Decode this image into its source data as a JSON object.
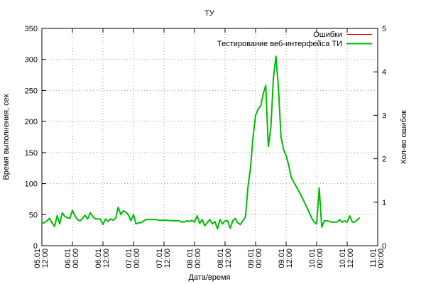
{
  "chart_data": {
    "type": "line",
    "title": "ТУ",
    "xlabel": "Дата/время",
    "ylabel": "Время выполнения, сек",
    "y2label": "Кол-во ошибок",
    "ylim": [
      0,
      350
    ],
    "y2lim": [
      0,
      5
    ],
    "yticks": [
      "0",
      "50",
      "100",
      "150",
      "200",
      "250",
      "300",
      "350"
    ],
    "y2ticks": [
      "0",
      "1",
      "2",
      "3",
      "4",
      "5"
    ],
    "xticks": [
      {
        "date": "05.01",
        "time": "12:00"
      },
      {
        "date": "06.01",
        "time": "00:00"
      },
      {
        "date": "06.01",
        "time": "12:00"
      },
      {
        "date": "07.01",
        "time": "00:00"
      },
      {
        "date": "07.01",
        "time": "12:00"
      },
      {
        "date": "08.01",
        "time": "00:00"
      },
      {
        "date": "08.01",
        "time": "12:00"
      },
      {
        "date": "09.01",
        "time": "00:00"
      },
      {
        "date": "09.01",
        "time": "12:00"
      },
      {
        "date": "10.01",
        "time": "00:00"
      },
      {
        "date": "10.01",
        "time": "12:00"
      },
      {
        "date": "11.01",
        "time": "00:00"
      }
    ],
    "grid": true,
    "legend_position": "top-right",
    "series": [
      {
        "name": "Ошибки",
        "axis": "y2",
        "color": "#dd0000",
        "points": []
      },
      {
        "name": "Тестирование веб-интерфейса ТИ",
        "axis": "y",
        "color": "#00bb00",
        "points": [
          [
            "05.01 12:00",
            36
          ],
          [
            "05.01 13:00",
            37
          ],
          [
            "05.01 14:00",
            40
          ],
          [
            "05.01 15:00",
            44
          ],
          [
            "05.01 16:00",
            37
          ],
          [
            "05.01 17:00",
            31
          ],
          [
            "05.01 18:00",
            48
          ],
          [
            "05.01 19:00",
            35
          ],
          [
            "05.01 20:00",
            53
          ],
          [
            "05.01 21:00",
            47
          ],
          [
            "05.01 22:00",
            45
          ],
          [
            "05.01 23:00",
            44
          ],
          [
            "06.01 00:00",
            57
          ],
          [
            "06.01 01:00",
            48
          ],
          [
            "06.01 02:00",
            42
          ],
          [
            "06.01 03:00",
            40
          ],
          [
            "06.01 04:00",
            44
          ],
          [
            "06.01 05:00",
            49
          ],
          [
            "06.01 06:00",
            43
          ],
          [
            "06.01 07:00",
            53
          ],
          [
            "06.01 08:00",
            47
          ],
          [
            "06.01 09:00",
            43
          ],
          [
            "06.01 10:00",
            43
          ],
          [
            "06.01 11:00",
            43
          ],
          [
            "06.01 12:00",
            34
          ],
          [
            "06.01 13:00",
            43
          ],
          [
            "06.01 14:00",
            39
          ],
          [
            "06.01 15:00",
            43
          ],
          [
            "06.01 16:00",
            41
          ],
          [
            "06.01 17:00",
            44
          ],
          [
            "06.01 18:00",
            62
          ],
          [
            "06.01 19:00",
            50
          ],
          [
            "06.01 20:00",
            56
          ],
          [
            "06.01 21:00",
            54
          ],
          [
            "06.01 22:00",
            50
          ],
          [
            "06.01 23:00",
            40
          ],
          [
            "07.01 00:00",
            50
          ],
          [
            "07.01 01:00",
            35
          ],
          [
            "07.01 02:00",
            37
          ],
          [
            "07.01 03:00",
            37
          ],
          [
            "07.01 04:00",
            40
          ],
          [
            "07.01 05:00",
            42
          ],
          [
            "07.01 06:00",
            42
          ],
          [
            "07.01 09:00",
            42
          ],
          [
            "07.01 10:00",
            41
          ],
          [
            "07.01 13:00",
            41
          ],
          [
            "07.01 16:00",
            40
          ],
          [
            "07.01 18:00",
            40
          ],
          [
            "07.01 19:00",
            38
          ],
          [
            "07.01 20:00",
            38
          ],
          [
            "07.01 21:00",
            40
          ],
          [
            "07.01 22:00",
            39
          ],
          [
            "07.01 23:00",
            41
          ],
          [
            "08.01 00:00",
            38
          ],
          [
            "08.01 01:00",
            48
          ],
          [
            "08.01 02:00",
            36
          ],
          [
            "08.01 03:00",
            42
          ],
          [
            "08.01 04:00",
            32
          ],
          [
            "08.01 05:00",
            37
          ],
          [
            "08.01 06:00",
            42
          ],
          [
            "08.01 07:00",
            35
          ],
          [
            "08.01 08:00",
            39
          ],
          [
            "08.01 09:00",
            27
          ],
          [
            "08.01 10:00",
            42
          ],
          [
            "08.01 11:00",
            35
          ],
          [
            "08.01 12:00",
            40
          ],
          [
            "08.01 13:00",
            40
          ],
          [
            "08.01 14:00",
            28
          ],
          [
            "08.01 15:00",
            40
          ],
          [
            "08.01 16:00",
            44
          ],
          [
            "08.01 17:00",
            37
          ],
          [
            "08.01 18:00",
            34
          ],
          [
            "08.01 19:00",
            40
          ],
          [
            "08.01 20:00",
            46
          ],
          [
            "08.01 21:00",
            95
          ],
          [
            "08.01 22:00",
            125
          ],
          [
            "08.01 23:00",
            175
          ],
          [
            "09.01 00:00",
            210
          ],
          [
            "09.01 01:00",
            220
          ],
          [
            "09.01 02:00",
            225
          ],
          [
            "09.01 03:00",
            245
          ],
          [
            "09.01 04:00",
            258
          ],
          [
            "09.01 05:00",
            160
          ],
          [
            "09.01 06:00",
            190
          ],
          [
            "09.01 07:00",
            270
          ],
          [
            "09.01 08:00",
            305
          ],
          [
            "09.01 09:00",
            252
          ],
          [
            "09.01 10:00",
            175
          ],
          [
            "09.01 11:00",
            155
          ],
          [
            "09.01 12:00",
            145
          ],
          [
            "09.01 13:00",
            130
          ],
          [
            "09.01 14:00",
            110
          ],
          [
            "09.01 16:00",
            95
          ],
          [
            "09.01 18:00",
            80
          ],
          [
            "09.01 20:00",
            63
          ],
          [
            "09.01 22:00",
            45
          ],
          [
            "09.01 23:00",
            38
          ],
          [
            "10.01 00:00",
            35
          ],
          [
            "10.01 01:00",
            93
          ],
          [
            "10.01 02:00",
            30
          ],
          [
            "10.01 03:00",
            40
          ],
          [
            "10.01 04:00",
            40
          ],
          [
            "10.01 05:00",
            39
          ],
          [
            "10.01 06:00",
            38
          ],
          [
            "10.01 07:00",
            38
          ],
          [
            "10.01 08:00",
            38
          ],
          [
            "10.01 09:00",
            42
          ],
          [
            "10.01 10:00",
            38
          ],
          [
            "10.01 11:00",
            40
          ],
          [
            "10.01 12:00",
            38
          ],
          [
            "10.01 13:00",
            48
          ],
          [
            "10.01 14:00",
            38
          ],
          [
            "10.01 15:00",
            38
          ],
          [
            "10.01 16:00",
            42
          ],
          [
            "10.01 17:00",
            45
          ]
        ]
      }
    ]
  }
}
